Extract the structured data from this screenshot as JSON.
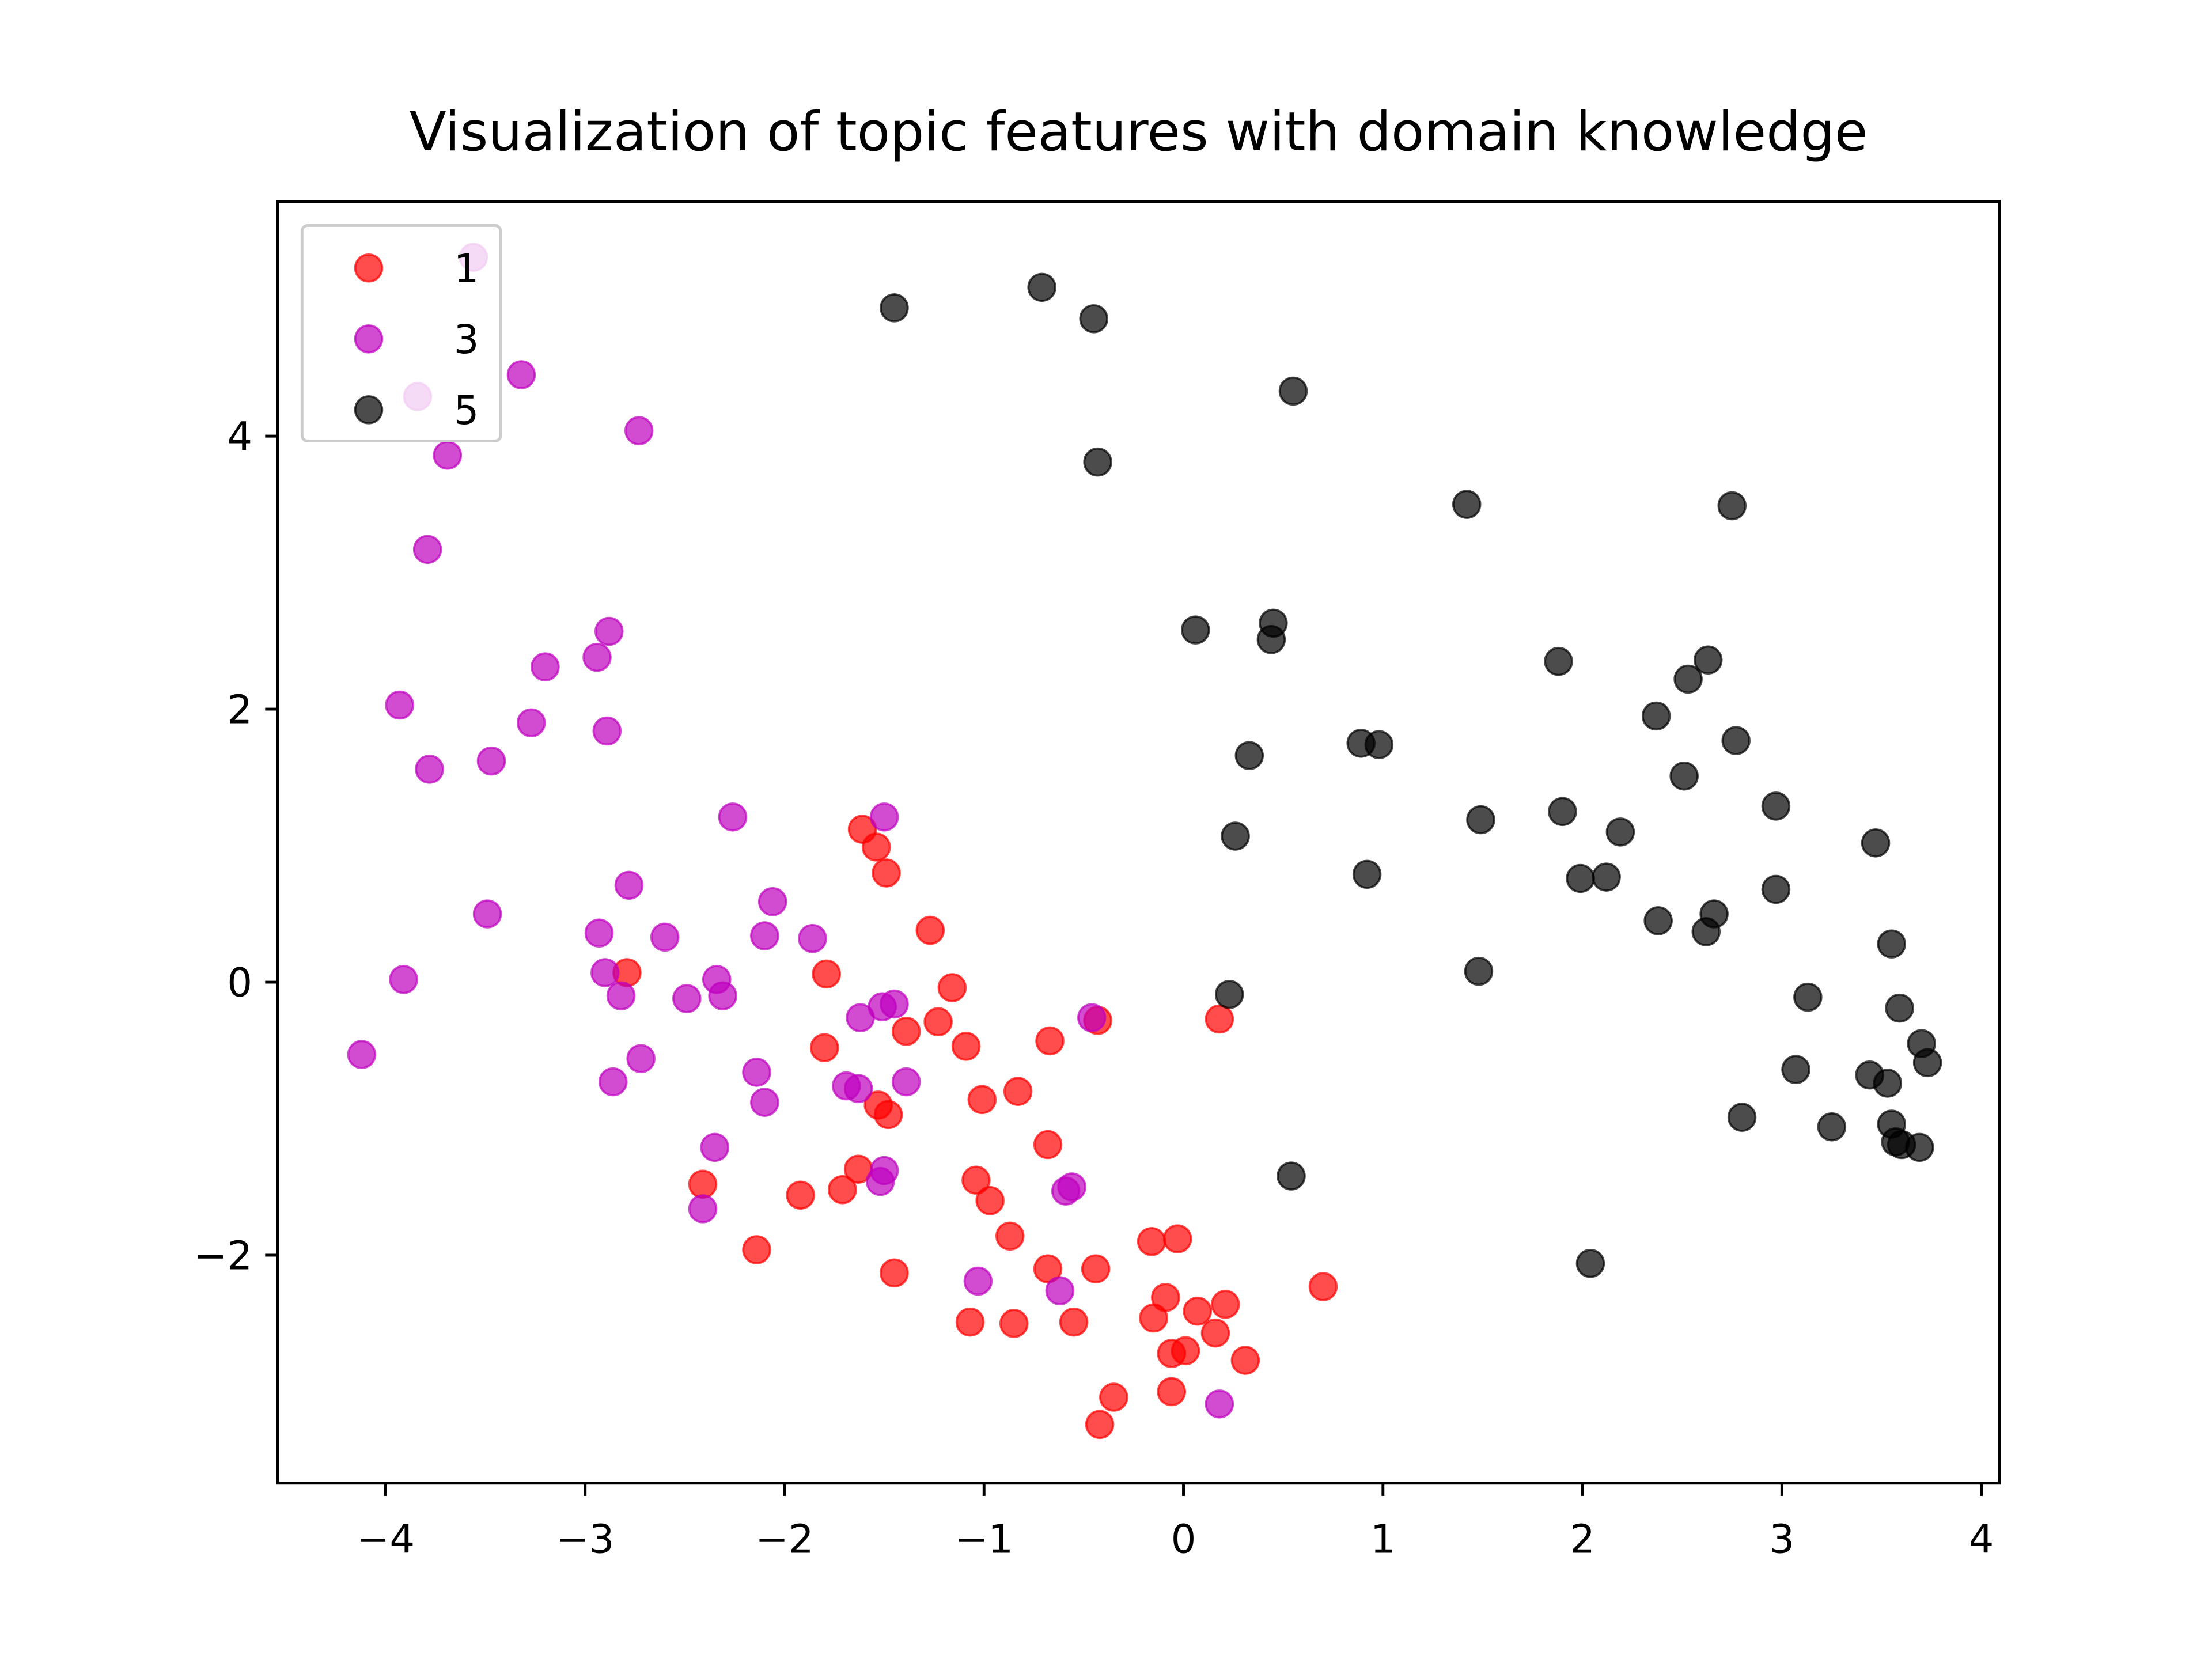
{
  "chart_data": {
    "type": "scatter",
    "title": "Visualization of topic features with domain knowledge",
    "xlim": [
      -4.54,
      4.09
    ],
    "ylim": [
      -3.67,
      5.72
    ],
    "xticks": [
      {
        "value": -4,
        "label": "−4"
      },
      {
        "value": -3,
        "label": "−3"
      },
      {
        "value": -2,
        "label": "−2"
      },
      {
        "value": -1,
        "label": "−1"
      },
      0,
      1,
      2,
      3,
      4
    ],
    "yticks": [
      {
        "value": -2,
        "label": "−2"
      },
      0,
      2,
      4
    ],
    "legend": "upper left",
    "series": [
      {
        "name": "1",
        "color": "#ff0000",
        "x": [
          -1.61,
          -1.54,
          -1.49,
          -1.27,
          -1.79,
          -2.79,
          -1.16,
          -1.23,
          -1.39,
          -1.8,
          -1.09,
          -0.67,
          -0.43,
          0.18,
          -0.83,
          -1.01,
          -1.53,
          -1.48,
          -0.68,
          -1.63,
          -1.04,
          -0.97,
          -1.71,
          -1.92,
          -2.41,
          -2.14,
          -0.87,
          -0.68,
          -0.44,
          -1.45,
          -0.16,
          -0.03,
          0.7,
          -0.09,
          0.07,
          0.21,
          -0.15,
          -1.07,
          -0.85,
          -0.55,
          0.16,
          -0.06,
          0.01,
          0.31,
          -0.06,
          -0.35,
          -0.42
        ],
        "values": [
          1.12,
          0.99,
          0.8,
          0.38,
          0.06,
          0.07,
          -0.04,
          -0.29,
          -0.36,
          -0.48,
          -0.47,
          -0.43,
          -0.28,
          -0.27,
          -0.8,
          -0.86,
          -0.9,
          -0.97,
          -1.19,
          -1.37,
          -1.45,
          -1.6,
          -1.52,
          -1.56,
          -1.48,
          -1.96,
          -1.86,
          -2.1,
          -2.1,
          -2.13,
          -1.9,
          -1.88,
          -2.23,
          -2.31,
          -2.41,
          -2.36,
          -2.46,
          -2.49,
          -2.5,
          -2.49,
          -2.57,
          -2.72,
          -2.7,
          -2.77,
          -3.0,
          -3.04,
          -3.24
        ]
      },
      {
        "name": "3",
        "color": "#bf00bf",
        "x": [
          -3.56,
          -3.32,
          -3.84,
          -2.73,
          -3.69,
          -3.79,
          -2.88,
          -3.2,
          -2.94,
          -3.27,
          -3.93,
          -2.89,
          -3.78,
          -3.47,
          -2.26,
          -1.5,
          -2.78,
          -2.06,
          -3.49,
          -2.93,
          -2.1,
          -2.6,
          -1.86,
          -3.91,
          -2.9,
          -2.34,
          -2.82,
          -2.49,
          -2.31,
          -1.51,
          -1.45,
          -1.62,
          -0.46,
          -2.72,
          -1.39,
          -4.12,
          -2.86,
          -2.14,
          -1.69,
          -1.63,
          -2.1,
          -2.35,
          -1.5,
          -1.52,
          -0.56,
          -0.59,
          -2.41,
          -1.03,
          -0.62,
          0.18
        ],
        "values": [
          5.31,
          4.45,
          4.29,
          4.04,
          3.86,
          3.17,
          2.57,
          2.31,
          2.38,
          1.9,
          2.03,
          1.84,
          1.56,
          1.62,
          1.21,
          1.21,
          0.71,
          0.59,
          0.5,
          0.36,
          0.34,
          0.33,
          0.32,
          0.02,
          0.07,
          0.02,
          -0.1,
          -0.12,
          -0.1,
          -0.18,
          -0.16,
          -0.26,
          -0.26,
          -0.56,
          -0.73,
          -0.53,
          -0.73,
          -0.66,
          -0.76,
          -0.78,
          -0.88,
          -1.21,
          -1.38,
          -1.46,
          -1.5,
          -1.53,
          -1.66,
          -2.19,
          -2.26,
          -3.09
        ]
      },
      {
        "name": "5",
        "color": "#000000",
        "x": [
          -0.71,
          -1.45,
          -0.45,
          0.55,
          -0.43,
          1.42,
          2.75,
          0.06,
          0.45,
          0.44,
          1.88,
          2.63,
          2.53,
          2.37,
          2.77,
          0.89,
          0.98,
          0.33,
          2.51,
          1.49,
          1.9,
          2.19,
          2.97,
          0.26,
          3.47,
          0.92,
          1.99,
          2.12,
          2.97,
          2.38,
          2.66,
          2.62,
          3.55,
          1.48,
          0.23,
          3.13,
          3.59,
          3.7,
          3.73,
          3.07,
          3.44,
          3.53,
          2.8,
          3.25,
          3.55,
          3.57,
          3.6,
          3.69,
          0.54,
          2.04
        ],
        "values": [
          5.09,
          4.94,
          4.86,
          4.33,
          3.81,
          3.5,
          3.49,
          2.58,
          2.63,
          2.51,
          2.35,
          2.36,
          2.22,
          1.95,
          1.77,
          1.75,
          1.74,
          1.66,
          1.51,
          1.19,
          1.25,
          1.1,
          1.29,
          1.07,
          1.02,
          0.79,
          0.76,
          0.77,
          0.68,
          0.45,
          0.5,
          0.37,
          0.28,
          0.08,
          -0.09,
          -0.11,
          -0.19,
          -0.45,
          -0.59,
          -0.64,
          -0.68,
          -0.74,
          -0.99,
          -1.06,
          -1.04,
          -1.17,
          -1.19,
          -1.21,
          -1.42,
          -2.06
        ]
      }
    ]
  }
}
